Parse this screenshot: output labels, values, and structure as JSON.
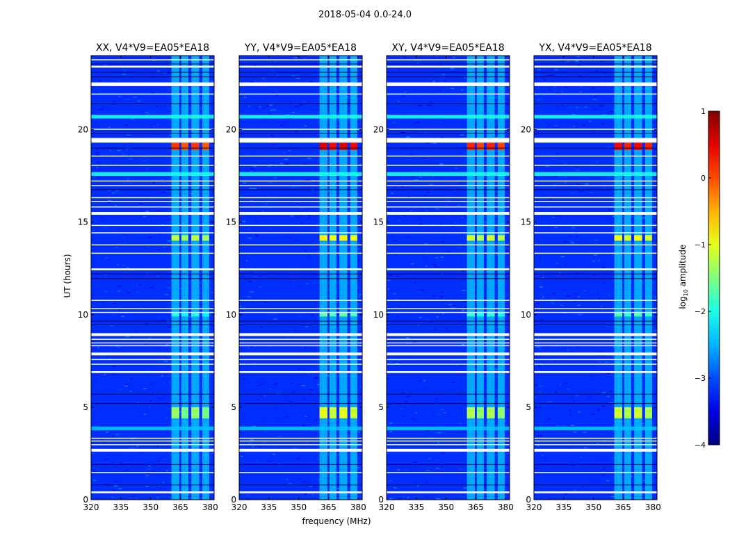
{
  "suptitle": "2018-05-04 0.0-24.0",
  "chart_data": {
    "type": "heatmap",
    "title": "2018-05-04 0.0-24.0",
    "xlabel": "frequency (MHz)",
    "ylabel": "UT (hours)",
    "xlim": [
      320,
      382
    ],
    "ylim": [
      0,
      24
    ],
    "xticks": [
      320,
      335,
      350,
      365,
      380
    ],
    "xtick_labels": [
      "320",
      "335",
      "350",
      "365",
      "380"
    ],
    "yticks": [
      0,
      5,
      10,
      15,
      20
    ],
    "ytick_labels": [
      "0",
      "5",
      "10",
      "15",
      "20"
    ],
    "colormap": "jet",
    "colorbar": {
      "label_main": "log",
      "label_sub": "10",
      "label_rest": " amplitude",
      "range": [
        -4,
        1
      ],
      "ticks": [
        1,
        0,
        -1,
        -2,
        -3,
        -4
      ],
      "tick_labels": [
        "1",
        "0",
        "−1",
        "−2",
        "−3",
        "−4"
      ]
    },
    "panels": [
      {
        "title": "XX, V4*V9=EA05*EA18",
        "rfi_strength": 0.65
      },
      {
        "title": "YY, V4*V9=EA05*EA18",
        "rfi_strength": 1.0
      },
      {
        "title": "XY, V4*V9=EA05*EA18",
        "rfi_strength": 0.75
      },
      {
        "title": "YX, V4*V9=EA05*EA18",
        "rfi_strength": 0.9
      }
    ],
    "rfi_bands_mhz": [
      [
        360.5,
        364.5
      ],
      [
        365.5,
        369
      ],
      [
        370.5,
        374.5
      ],
      [
        376,
        379.5
      ]
    ],
    "rfi_events_ut": [
      {
        "ut": [
          18.9,
          19.3
        ],
        "level": 0.5
      },
      {
        "ut": [
          14.0,
          14.3
        ],
        "level": -0.8
      },
      {
        "ut": [
          4.4,
          5.0
        ],
        "level": -1.0
      },
      {
        "ut": [
          9.9,
          10.1
        ],
        "level": -1.6
      }
    ],
    "broadband_events_ut": [
      {
        "ut": [
          17.5,
          17.7
        ],
        "level": -2.0
      },
      {
        "ut": [
          20.6,
          20.8
        ],
        "level": -2.0
      },
      {
        "ut": [
          3.75,
          3.95
        ],
        "level": -2.4
      }
    ],
    "flagged_ut": [
      [
        0.35,
        0.45
      ],
      [
        1.45,
        1.5
      ],
      [
        2.6,
        2.75
      ],
      [
        2.95,
        3.0
      ],
      [
        3.15,
        3.2
      ],
      [
        3.3,
        3.35
      ],
      [
        6.85,
        6.95
      ],
      [
        7.3,
        7.35
      ],
      [
        7.55,
        7.6
      ],
      [
        7.8,
        7.95
      ],
      [
        8.3,
        8.35
      ],
      [
        8.45,
        8.5
      ],
      [
        8.65,
        8.7
      ],
      [
        8.85,
        9.0
      ],
      [
        10.1,
        10.15
      ],
      [
        10.3,
        10.35
      ],
      [
        10.75,
        10.8
      ],
      [
        12.4,
        12.5
      ],
      [
        13.3,
        13.35
      ],
      [
        13.75,
        13.8
      ],
      [
        14.4,
        14.45
      ],
      [
        14.8,
        14.85
      ],
      [
        15.4,
        15.55
      ],
      [
        15.8,
        15.85
      ],
      [
        16.1,
        16.15
      ],
      [
        16.3,
        16.35
      ],
      [
        16.95,
        17.0
      ],
      [
        17.2,
        17.25
      ],
      [
        18.05,
        18.1
      ],
      [
        18.55,
        18.6
      ],
      [
        19.3,
        19.55
      ],
      [
        20.0,
        20.05
      ],
      [
        21.9,
        21.95
      ],
      [
        22.35,
        22.55
      ],
      [
        23.35,
        23.45
      ],
      [
        23.75,
        23.8
      ]
    ],
    "dark_lines_ut": [
      0.8,
      1.9,
      5.2,
      5.7,
      9.45,
      9.65,
      11.95,
      12.2,
      16.75,
      19.0,
      19.8,
      21.4,
      22.85,
      23.1,
      23.55
    ]
  }
}
